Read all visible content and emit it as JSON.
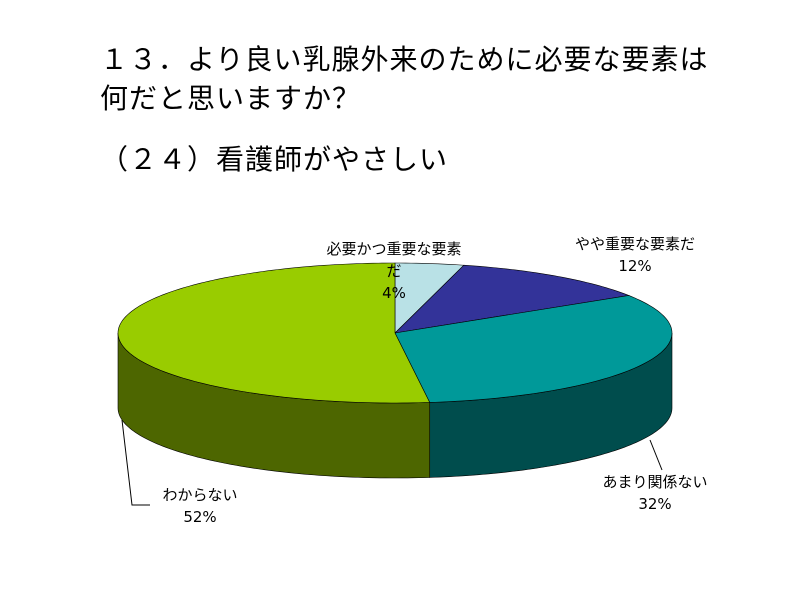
{
  "chart_data": {
    "type": "pie3d",
    "title": [
      "１３．より良い乳腺外来のために必要な要素は",
      "何だと思いますか？"
    ],
    "subtitle": "（２４）看護師がやさしい",
    "categories": [
      "必要かつ重要な要素だ",
      "やや重要な要素だ",
      "あまり関係ない",
      "わからない"
    ],
    "values": [
      4,
      12,
      32,
      52
    ],
    "value_labels": [
      "4%",
      "12%",
      "32%",
      "52%"
    ],
    "colors": [
      "#b9e1e6",
      "#333399",
      "#009999",
      "#99cc00"
    ],
    "side_colors": [
      "#5d7073",
      "#1a1a4d",
      "#004d4d",
      "#4d6600"
    ]
  }
}
